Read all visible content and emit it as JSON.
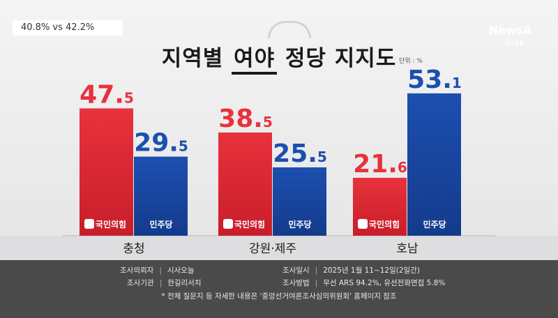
{
  "badge": "40.8% vs 42.2%",
  "brand": {
    "name": "NewsA",
    "sub": "LIVE"
  },
  "title": {
    "pre": "지역별",
    "highlight": "여야",
    "post": "정당 지지도"
  },
  "unit": "단위 : %",
  "chart_data": {
    "type": "bar",
    "title": "지역별 여야 정당 지지도",
    "categories": [
      "충청",
      "강원·제주",
      "호남"
    ],
    "series": [
      {
        "name": "국민의힘",
        "color": "#e8323c",
        "values": [
          47.5,
          38.5,
          21.6
        ]
      },
      {
        "name": "민주당",
        "color": "#1c4fb0",
        "values": [
          29.5,
          25.5,
          53.1
        ]
      }
    ],
    "ylim": [
      0,
      60
    ],
    "legend": "in-bar labels"
  },
  "footer": {
    "client_label": "조사의뢰자",
    "client": "시사오늘",
    "org_label": "조사기관",
    "org": "한길리서치",
    "date_label": "조사일시",
    "date": "2025년 1월 11~12일(2일간)",
    "method_label": "조사방법",
    "method": "무선 ARS 94.2%, 유선전화면접 5.8%",
    "note": "* 전체 질문지 등 자세한 내용은 '중앙선거여론조사심의위원회' 홈페이지 참조"
  }
}
